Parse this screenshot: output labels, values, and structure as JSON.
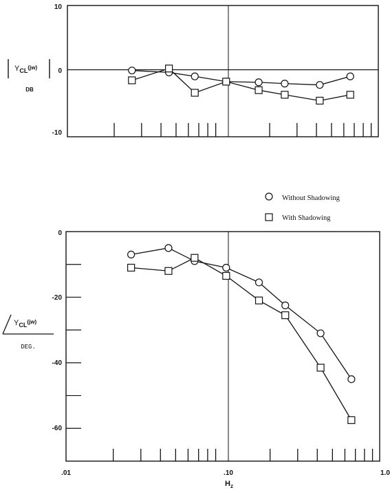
{
  "legend": {
    "without_label": "Without Shadowing",
    "with_label": "With Shadowing"
  },
  "top": {
    "ylabel_main": "Y",
    "ylabel_sub": "CL",
    "ylabel_arg": "(jw)",
    "ylabel_unit": "DB",
    "yticks": [
      "10",
      "0",
      "-10"
    ]
  },
  "bottom": {
    "ylabel_main": "Y",
    "ylabel_sub": "CL",
    "ylabel_arg": "(jw)",
    "ylabel_unit": "DEG.",
    "yticks": [
      "0",
      "-20",
      "-40",
      "-60"
    ],
    "xticks": [
      ".01",
      ".10",
      "1.0"
    ],
    "xlabel_main": "H",
    "xlabel_sub": "z"
  },
  "chart_data": [
    {
      "type": "line",
      "title": "",
      "ylabel": "|Y_CL(jw)| DB",
      "xlabel": "",
      "xscale": "log",
      "xlim": [
        0.01,
        1.0
      ],
      "ylim": [
        -10,
        10
      ],
      "grid": false,
      "x": [
        0.026,
        0.045,
        0.066,
        0.105,
        0.17,
        0.25,
        0.42,
        0.66
      ],
      "series": [
        {
          "name": "Without Shadowing",
          "marker": "circle",
          "values": [
            0.1,
            -0.2,
            -0.8,
            -1.6,
            -1.7,
            -1.9,
            -2.1,
            -0.8
          ]
        },
        {
          "name": "With Shadowing",
          "marker": "square",
          "values": [
            -1.4,
            0.4,
            -3.3,
            -1.6,
            -2.9,
            -3.6,
            -4.5,
            -3.6
          ]
        }
      ]
    },
    {
      "type": "line",
      "title": "",
      "ylabel": "/Y_CL(jw) DEG.",
      "xlabel": "Hz",
      "xscale": "log",
      "xlim": [
        0.01,
        1.0
      ],
      "ylim": [
        -70,
        0
      ],
      "grid": false,
      "legend_position": "top-right",
      "x": [
        0.026,
        0.045,
        0.066,
        0.105,
        0.17,
        0.25,
        0.42,
        0.66
      ],
      "series": [
        {
          "name": "Without Shadowing",
          "marker": "circle",
          "values": [
            -7,
            -5,
            -9,
            -11,
            -15.5,
            -22.5,
            -31,
            -45
          ]
        },
        {
          "name": "With Shadowing",
          "marker": "square",
          "values": [
            -11,
            -12,
            -8,
            -13.5,
            -21,
            -25.5,
            -41.5,
            -57.5
          ]
        }
      ]
    }
  ]
}
